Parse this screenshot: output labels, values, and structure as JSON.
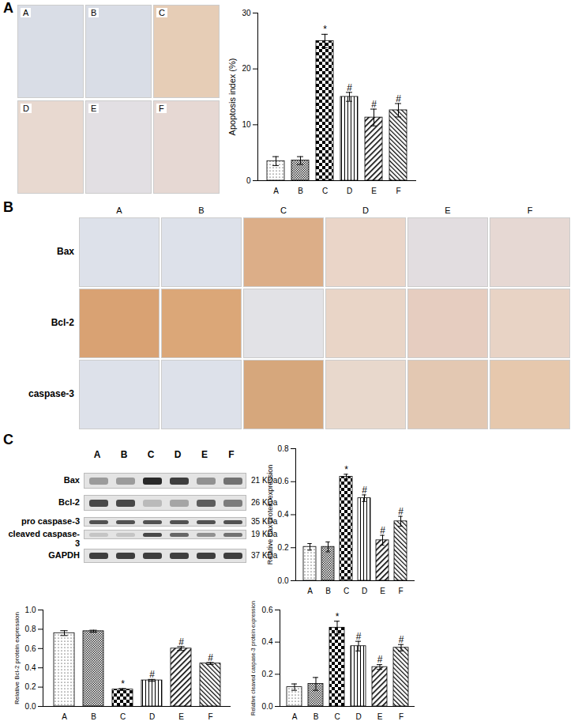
{
  "panel_labels": [
    "A",
    "B",
    "C"
  ],
  "panel_a_images": [
    "A",
    "B",
    "C",
    "D",
    "E",
    "F"
  ],
  "panel_b": {
    "columns": [
      "A",
      "B",
      "C",
      "D",
      "E",
      "F"
    ],
    "rows": [
      "Bax",
      "Bcl-2",
      "caspase-3"
    ]
  },
  "panel_c_blot": {
    "lanes": [
      "A",
      "B",
      "C",
      "D",
      "E",
      "F"
    ],
    "rows": [
      {
        "name": "Bax",
        "size": "21 KDa"
      },
      {
        "name": "Bcl-2",
        "size": "26 KDa"
      },
      {
        "name": "pro caspase-3",
        "size": "35 KDa"
      },
      {
        "name": "cleaved caspase-3",
        "size": "19 KDa"
      },
      {
        "name": "GAPDH",
        "size": "37 KDa"
      }
    ]
  },
  "chart_data": [
    {
      "type": "bar",
      "y_label": "Apoptosis index (%)",
      "categories": [
        "A",
        "B",
        "C",
        "D",
        "E",
        "F"
      ],
      "values": [
        3.5,
        3.6,
        25,
        15,
        11.3,
        12.6
      ],
      "errors": [
        0.8,
        0.7,
        1.2,
        0.8,
        1.5,
        1.2
      ],
      "significance": [
        null,
        null,
        "*",
        "#",
        "#",
        "#"
      ],
      "ylim": [
        0,
        30
      ],
      "yticks": [
        0,
        10,
        20,
        30
      ]
    },
    {
      "type": "bar",
      "y_label": "Relative Bax protein expression",
      "categories": [
        "A",
        "B",
        "C",
        "D",
        "E",
        "F"
      ],
      "values": [
        0.205,
        0.205,
        0.63,
        0.5,
        0.245,
        0.36
      ],
      "errors": [
        0.02,
        0.03,
        0.015,
        0.02,
        0.03,
        0.03
      ],
      "significance": [
        null,
        null,
        "*",
        "#",
        "#",
        "#"
      ],
      "ylim": [
        0,
        0.8
      ],
      "yticks": [
        {
          "value": 0,
          "label": "0.0"
        },
        0.2,
        0.4,
        0.6,
        0.8
      ]
    },
    {
      "type": "bar",
      "y_label": "Relative Bcl-2 protein expression",
      "categories": [
        "A",
        "B",
        "C",
        "D",
        "E",
        "F"
      ],
      "values": [
        0.76,
        0.78,
        0.175,
        0.27,
        0.6,
        0.445
      ],
      "errors": [
        0.025,
        0.01,
        0.01,
        0.01,
        0.02,
        0.01
      ],
      "significance": [
        null,
        null,
        "*",
        "#",
        "#",
        "#"
      ],
      "ylim": [
        0,
        1
      ],
      "yticks": [
        {
          "value": 0,
          "label": "0.0"
        },
        0.2,
        0.4,
        0.6,
        0.8,
        {
          "value": 1,
          "label": "1.0"
        }
      ]
    },
    {
      "type": "bar",
      "y_label": "Relative cleaved caspase-3 protein expression",
      "categories": [
        "A",
        "B",
        "C",
        "D",
        "E",
        "F"
      ],
      "values": [
        0.12,
        0.14,
        0.49,
        0.375,
        0.245,
        0.365
      ],
      "errors": [
        0.02,
        0.04,
        0.04,
        0.03,
        0.015,
        0.02
      ],
      "significance": [
        null,
        null,
        "*",
        "#",
        "#",
        "#"
      ],
      "ylim": [
        0,
        0.6
      ],
      "yticks": [
        {
          "value": 0,
          "label": "0.0"
        },
        0.2,
        0.4,
        0.6
      ]
    }
  ]
}
